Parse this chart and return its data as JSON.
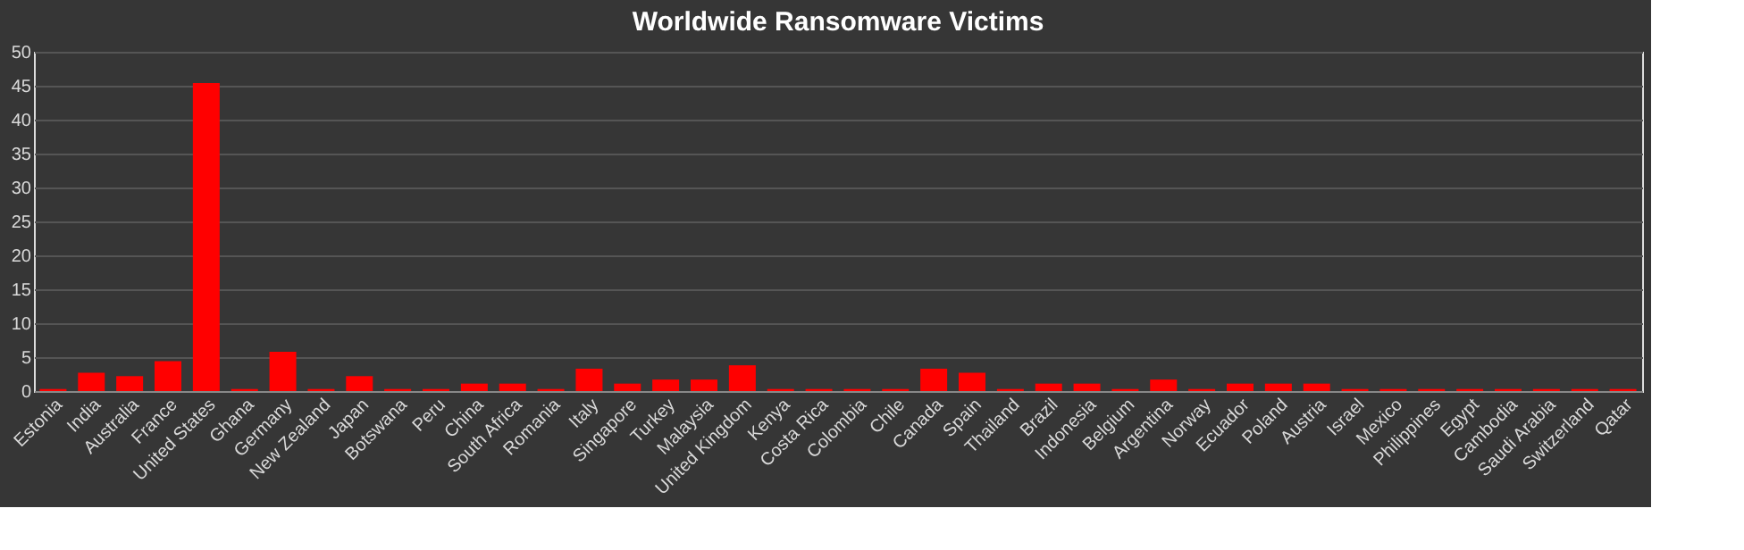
{
  "chart_data": {
    "type": "bar",
    "title": "Worldwide Ransomware Victims",
    "categories": [
      "Estonia",
      "India",
      "Australia",
      "France",
      "United States",
      "Ghana",
      "Germany",
      "New Zealand",
      "Japan",
      "Botswana",
      "Peru",
      "China",
      "South Africa",
      "Romania",
      "Italy",
      "Singapore",
      "Turkey",
      "Malaysia",
      "United Kingdom",
      "Kenya",
      "Costa Rica",
      "Colombia",
      "Chile",
      "Canada",
      "Spain",
      "Thailand",
      "Brazil",
      "Indonesia",
      "Belgium",
      "Argentina",
      "Norway",
      "Ecuador",
      "Poland",
      "Austria",
      "Israel",
      "Mexico",
      "Philippines",
      "Egypt",
      "Cambodia",
      "Saudi Arabia",
      "Switzerland",
      "Qatar"
    ],
    "values": [
      0.3,
      2.7,
      2.2,
      4.4,
      45.4,
      0.3,
      5.8,
      0.3,
      2.2,
      0.3,
      0.3,
      1.1,
      1.1,
      0.3,
      3.3,
      1.1,
      1.7,
      1.7,
      3.8,
      0.3,
      0.3,
      0.3,
      0.3,
      3.3,
      2.7,
      0.3,
      1.1,
      1.1,
      0.3,
      1.7,
      0.3,
      1.1,
      1.1,
      1.1,
      0.3,
      0.3,
      0.3,
      0.3,
      0.3,
      0.3,
      0.3,
      0.3
    ],
    "color": "#ff0000",
    "ylim": [
      0,
      50
    ],
    "yticks": [
      0,
      5,
      10,
      15,
      20,
      25,
      30,
      35,
      40,
      45,
      50
    ],
    "grid": "y"
  }
}
